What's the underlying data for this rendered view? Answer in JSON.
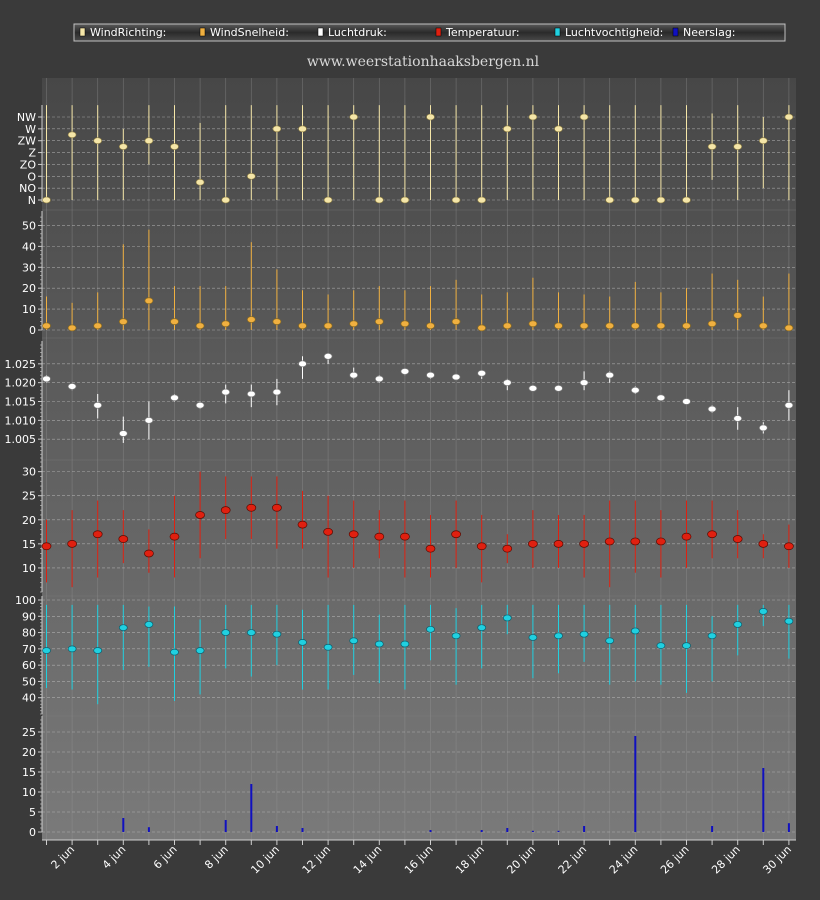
{
  "site_label": "www.weerstationhaaksbergen.nl",
  "legend": [
    {
      "label": "WindRichting:",
      "color": "#f5e6a8"
    },
    {
      "label": "WindSnelheid:",
      "color": "#f0b040"
    },
    {
      "label": "Luchtdruk:",
      "color": "#ffffff"
    },
    {
      "label": "Temperatuur:",
      "color": "#e02010"
    },
    {
      "label": "Luchtvochtigheid:",
      "color": "#20d0e0"
    },
    {
      "label": "Neerslag:",
      "color": "#1010c0"
    }
  ],
  "x_tick_labels": [
    "2 jun",
    "4 jun",
    "6 jun",
    "8 jun",
    "10 jun",
    "12 jun",
    "14 jun",
    "16 jun",
    "18 jun",
    "20 jun",
    "22 jun",
    "24 jun",
    "26 jun",
    "28 jun",
    "30 jun"
  ],
  "chart_data": [
    {
      "type": "scatter",
      "name": "WindRichting",
      "color": "#f5e6a8",
      "y_categories": [
        "N",
        "NO",
        "O",
        "ZO",
        "Z",
        "ZW",
        "W",
        "NW"
      ],
      "x": [
        1,
        2,
        3,
        4,
        5,
        6,
        7,
        8,
        9,
        10,
        11,
        12,
        13,
        14,
        15,
        16,
        17,
        18,
        19,
        20,
        21,
        22,
        23,
        24,
        25,
        26,
        27,
        28,
        29,
        30
      ],
      "values": [
        0,
        5.5,
        5,
        4.5,
        5,
        4.5,
        1.5,
        0,
        2,
        6,
        6,
        0,
        7,
        0,
        0,
        7,
        0,
        0,
        6,
        7,
        6,
        7,
        0,
        0,
        0,
        0,
        4.5,
        4.5,
        5,
        7
      ],
      "low": [
        0,
        0,
        0,
        0,
        3,
        0,
        0,
        0,
        0,
        0,
        0,
        0,
        0,
        0,
        0,
        0,
        0,
        0,
        0,
        0,
        0,
        0,
        0,
        0,
        0,
        0,
        1.7,
        0,
        1,
        0
      ],
      "high": [
        8,
        8,
        8,
        6,
        8,
        8,
        6.5,
        8,
        8,
        8,
        8,
        8,
        8,
        8,
        8,
        8,
        8,
        8,
        8,
        8,
        8,
        8,
        8,
        8,
        8,
        8,
        7.3,
        8,
        7,
        8
      ]
    },
    {
      "type": "scatter",
      "name": "WindSnelheid",
      "color": "#f0b040",
      "ylim": [
        0,
        55
      ],
      "yticks": [
        0,
        10,
        20,
        30,
        40,
        50
      ],
      "x": [
        1,
        2,
        3,
        4,
        5,
        6,
        7,
        8,
        9,
        10,
        11,
        12,
        13,
        14,
        15,
        16,
        17,
        18,
        19,
        20,
        21,
        22,
        23,
        24,
        25,
        26,
        27,
        28,
        29,
        30
      ],
      "values": [
        2,
        1,
        2,
        4,
        14,
        4,
        2,
        3,
        5,
        4,
        2,
        2,
        3,
        4,
        3,
        2,
        4,
        1,
        2,
        3,
        2,
        2,
        2,
        2,
        2,
        2,
        3,
        7,
        2,
        1
      ],
      "high": [
        16,
        13,
        18,
        41,
        48,
        21,
        21,
        21,
        42,
        29,
        19,
        17,
        19,
        21,
        19,
        21,
        24,
        17,
        18,
        25,
        18,
        17,
        16,
        23,
        18,
        20,
        27,
        24,
        16,
        27
      ]
    },
    {
      "type": "scatter",
      "name": "Luchtdruk",
      "color": "#ffffff",
      "ylim": [
        1.0,
        1.03
      ],
      "yticks": [
        1.005,
        1.01,
        1.015,
        1.02,
        1.025
      ],
      "x": [
        1,
        2,
        3,
        4,
        5,
        6,
        7,
        8,
        9,
        10,
        11,
        12,
        13,
        14,
        15,
        16,
        17,
        18,
        19,
        20,
        21,
        22,
        23,
        24,
        25,
        26,
        27,
        28,
        29,
        30
      ],
      "values": [
        1.021,
        1.019,
        1.014,
        1.0065,
        1.01,
        1.016,
        1.014,
        1.0175,
        1.017,
        1.0175,
        1.025,
        1.027,
        1.022,
        1.021,
        1.023,
        1.022,
        1.0215,
        1.0225,
        1.02,
        1.0185,
        1.0185,
        1.02,
        1.022,
        1.018,
        1.016,
        1.015,
        1.013,
        1.0105,
        1.008,
        1.014
      ],
      "low": [
        1.02,
        1.018,
        1.0105,
        1.004,
        1.005,
        1.015,
        1.013,
        1.0145,
        1.0135,
        1.014,
        1.021,
        1.025,
        1.021,
        1.02,
        1.022,
        1.021,
        1.021,
        1.021,
        1.018,
        1.018,
        1.018,
        1.018,
        1.02,
        1.017,
        1.0155,
        1.0145,
        1.012,
        1.0075,
        1.0065,
        1.01
      ],
      "high": [
        1.022,
        1.0195,
        1.017,
        1.011,
        1.015,
        1.017,
        1.015,
        1.0195,
        1.0195,
        1.021,
        1.027,
        1.0275,
        1.024,
        1.022,
        1.0235,
        1.0225,
        1.022,
        1.023,
        1.021,
        1.019,
        1.019,
        1.023,
        1.023,
        1.019,
        1.0165,
        1.0155,
        1.014,
        1.0135,
        1.0095,
        1.018
      ]
    },
    {
      "type": "scatter",
      "name": "Temperatuur",
      "color": "#e02010",
      "ylim": [
        5,
        32
      ],
      "yticks": [
        10,
        15,
        20,
        25,
        30
      ],
      "x": [
        1,
        2,
        3,
        4,
        5,
        6,
        7,
        8,
        9,
        10,
        11,
        12,
        13,
        14,
        15,
        16,
        17,
        18,
        19,
        20,
        21,
        22,
        23,
        24,
        25,
        26,
        27,
        28,
        29,
        30
      ],
      "values": [
        14.5,
        15,
        17,
        16,
        13,
        16.5,
        21,
        22,
        22.5,
        22.5,
        19,
        17.5,
        17,
        16.5,
        16.5,
        14,
        17,
        14.5,
        14,
        15,
        15,
        15,
        15.5,
        15.5,
        15.5,
        16.5,
        17,
        16,
        15,
        14.5
      ],
      "low": [
        7,
        6,
        8,
        11,
        9,
        8,
        12,
        16,
        16,
        14,
        14,
        8,
        10,
        12,
        8,
        8,
        10,
        7,
        11,
        10,
        10,
        8,
        6,
        9,
        8,
        10,
        12,
        12,
        12,
        10
      ],
      "high": [
        20,
        22,
        24,
        22,
        18,
        25,
        30,
        29,
        29,
        29,
        26,
        25,
        24,
        22,
        24,
        21,
        24,
        21,
        17,
        22,
        21,
        21,
        24,
        24,
        22,
        24,
        24,
        22,
        17,
        19
      ]
    },
    {
      "type": "scatter",
      "name": "Luchtvochtigheid",
      "color": "#20d0e0",
      "ylim": [
        30,
        100
      ],
      "yticks": [
        40,
        50,
        60,
        70,
        80,
        90,
        100
      ],
      "x": [
        1,
        2,
        3,
        4,
        5,
        6,
        7,
        8,
        9,
        10,
        11,
        12,
        13,
        14,
        15,
        16,
        17,
        18,
        19,
        20,
        21,
        22,
        23,
        24,
        25,
        26,
        27,
        28,
        29,
        30
      ],
      "values": [
        69,
        70,
        69,
        83,
        85,
        68,
        69,
        80,
        80,
        79,
        74,
        71,
        75,
        73,
        73,
        82,
        78,
        83,
        89,
        77,
        78,
        79,
        75,
        81,
        72,
        72,
        78,
        85,
        93,
        87
      ],
      "low": [
        46,
        45,
        36,
        57,
        59,
        38,
        42,
        58,
        53,
        60,
        45,
        45,
        54,
        49,
        45,
        63,
        48,
        58,
        79,
        52,
        55,
        62,
        48,
        50,
        48,
        43,
        50,
        66,
        84,
        64
      ],
      "high": [
        97,
        97,
        97,
        97,
        96,
        96,
        88,
        97,
        97,
        97,
        94,
        97,
        97,
        91,
        97,
        97,
        95,
        97,
        97,
        97,
        97,
        97,
        97,
        97,
        97,
        97,
        90,
        97,
        97,
        97
      ]
    },
    {
      "type": "bar",
      "name": "Neerslag",
      "color": "#1010c0",
      "ylim": [
        0,
        28
      ],
      "yticks": [
        0,
        5,
        10,
        15,
        20,
        25
      ],
      "x": [
        1,
        2,
        3,
        4,
        5,
        6,
        7,
        8,
        9,
        10,
        11,
        12,
        13,
        14,
        15,
        16,
        17,
        18,
        19,
        20,
        21,
        22,
        23,
        24,
        25,
        26,
        27,
        28,
        29,
        30
      ],
      "values": [
        0,
        0,
        0,
        3.5,
        1.2,
        0,
        0,
        3,
        12,
        1.5,
        1,
        0,
        0,
        0,
        0,
        0.5,
        0,
        0.5,
        1,
        0.3,
        0.3,
        1.5,
        0,
        24,
        0,
        0,
        1.5,
        0,
        16,
        2.2
      ]
    }
  ]
}
